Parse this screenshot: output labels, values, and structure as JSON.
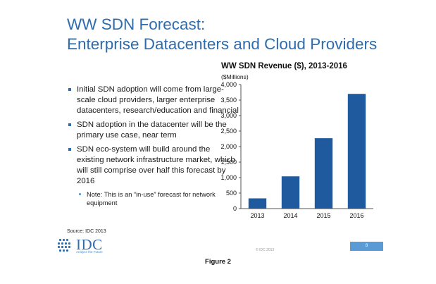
{
  "slide": {
    "title_line1": "WW SDN Forecast:",
    "title_line2": "Enterprise Datacenters and Cloud Providers",
    "bullets": [
      "Initial SDN adoption will come from large-scale cloud providers, larger enterprise datacenters, research/education and financial",
      "SDN adoption in the datacenter will be the primary use case, near term",
      "SDN eco-system will build around the existing network infrastructure market, which will still comprise over half this forecast by 2016"
    ],
    "sub_bullet": "Note: This is an “in-use” forecast for network equipment",
    "source": "Source: IDC 2013",
    "logo_text": "IDC",
    "logo_tagline": "Analyze the Future",
    "copyright": "© IDC 2013",
    "page_number": "8"
  },
  "caption": "Figure 2",
  "chart_data": {
    "type": "bar",
    "title": "WW SDN Revenue ($), 2013-2016",
    "unit_label": "($Millions)",
    "categories": [
      "2013",
      "2014",
      "2015",
      "2016"
    ],
    "values": [
      330,
      1040,
      2270,
      3700
    ],
    "ylim": [
      0,
      4000
    ],
    "yticks": [
      0,
      500,
      1000,
      1500,
      2000,
      2500,
      3000,
      3500,
      4000
    ],
    "ytick_labels": [
      "0",
      "500",
      "1,000",
      "1,500",
      "2,000",
      "2,500",
      "3,000",
      "3,500",
      "4,000"
    ],
    "bar_color": "#1f5a9e",
    "grid": false
  },
  "colors": {
    "title": "#2e6cae",
    "bullet_marker": "#2e6cae",
    "page_box": "#5a9bd5"
  }
}
